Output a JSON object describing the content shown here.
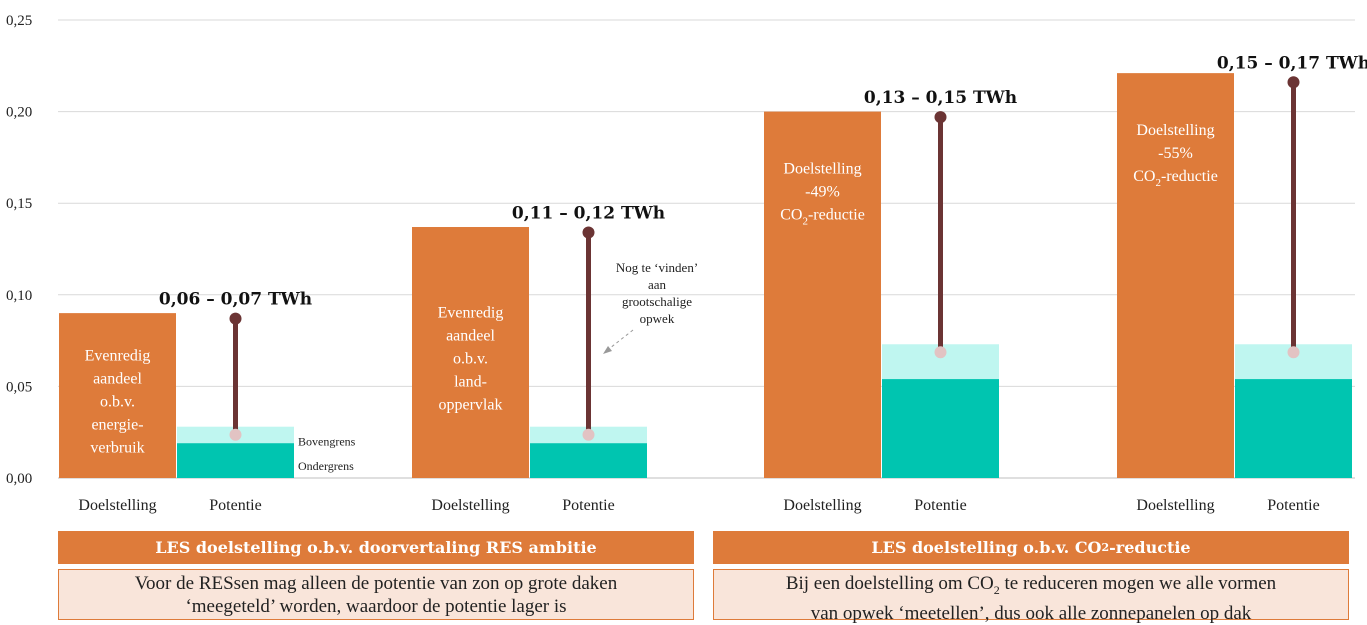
{
  "chart_data": {
    "type": "bar",
    "ylim": [
      0,
      0.25
    ],
    "yticks": [
      "0,00",
      "0,05",
      "0,10",
      "0,15",
      "0,20",
      "0,25"
    ],
    "grid": true,
    "legend_labels": {
      "upper": "Bovengrens",
      "lower": "Ondergrens"
    },
    "annotation": [
      "Nog te ‘vinden’",
      "aan",
      "grootschalige",
      "opwek"
    ],
    "groups": [
      {
        "doel_value": 0.09,
        "doel_label": [
          [
            "Evenredig",
            false
          ],
          [
            "aandeel",
            false
          ],
          [
            "o.b.v.",
            false
          ],
          [
            "energie-",
            true
          ],
          [
            "verbruik",
            true
          ]
        ],
        "potentie_lower": 0.019,
        "potentie_upper": 0.028,
        "potentie_range": [
          0.06,
          0.07
        ],
        "marker_top": 0.087,
        "range_label": "0,06 – 0,07 TWh",
        "x_labels": [
          "Doelstelling",
          "Potentie"
        ]
      },
      {
        "doel_value": 0.137,
        "doel_label": [
          [
            "Evenredig",
            false
          ],
          [
            "aandeel",
            false
          ],
          [
            "o.b.v.",
            false
          ],
          [
            "land-",
            true
          ],
          [
            "oppervlak",
            true
          ]
        ],
        "potentie_lower": 0.019,
        "potentie_upper": 0.028,
        "potentie_range": [
          0.11,
          0.12
        ],
        "marker_top": 0.134,
        "range_label": "0,11 – 0,12 TWh",
        "x_labels": [
          "Doelstelling",
          "Potentie"
        ]
      },
      {
        "doel_value": 0.2,
        "doel_label": [
          [
            "Doelstelling",
            false
          ],
          [
            "-49%",
            true
          ],
          [
            "CO₂-reductie",
            false
          ]
        ],
        "potentie_lower": 0.054,
        "potentie_upper": 0.073,
        "potentie_range": [
          0.13,
          0.15
        ],
        "marker_top": 0.197,
        "range_label": "0,13 – 0,15 TWh",
        "x_labels": [
          "Doelstelling",
          "Potentie"
        ]
      },
      {
        "doel_value": 0.221,
        "doel_label": [
          [
            "Doelstelling",
            false
          ],
          [
            "-55%",
            true
          ],
          [
            "CO₂-reductie",
            false
          ]
        ],
        "potentie_lower": 0.054,
        "potentie_upper": 0.073,
        "potentie_range": [
          0.15,
          0.17
        ],
        "marker_top": 0.216,
        "range_label": "0,15 – 0,17 TWh",
        "x_labels": [
          "Doelstelling",
          "Potentie"
        ]
      }
    ]
  },
  "colors": {
    "doelstelling": "#DE7B3A",
    "potentie_lower": "#00C5B0",
    "potentie_upper": "#BFF6F0",
    "stem": "#6B3434",
    "marker_low": "#E2C3C3",
    "header_bg": "#DE7B3A",
    "desc_bg": "#F9E5DA"
  },
  "sections": [
    {
      "header": "LES doelstelling o.b.v. doorvertaling RES ambitie",
      "description_line1": "Voor de RESsen mag alleen de potentie van zon op grote daken",
      "description_line2": "‘meegeteld’ worden, waardoor de potentie lager is"
    },
    {
      "header_prefix": "LES doelstelling o.b.v. CO",
      "header_sub": "2",
      "header_suffix": "-reductie",
      "description_line1_prefix": "Bij een doelstelling om CO",
      "description_line1_sub": "2",
      "description_line1_suffix": " te reduceren mogen we alle vormen",
      "description_line2": "van opwek ‘meetellen’, dus ook alle zonnepanelen op dak"
    }
  ]
}
